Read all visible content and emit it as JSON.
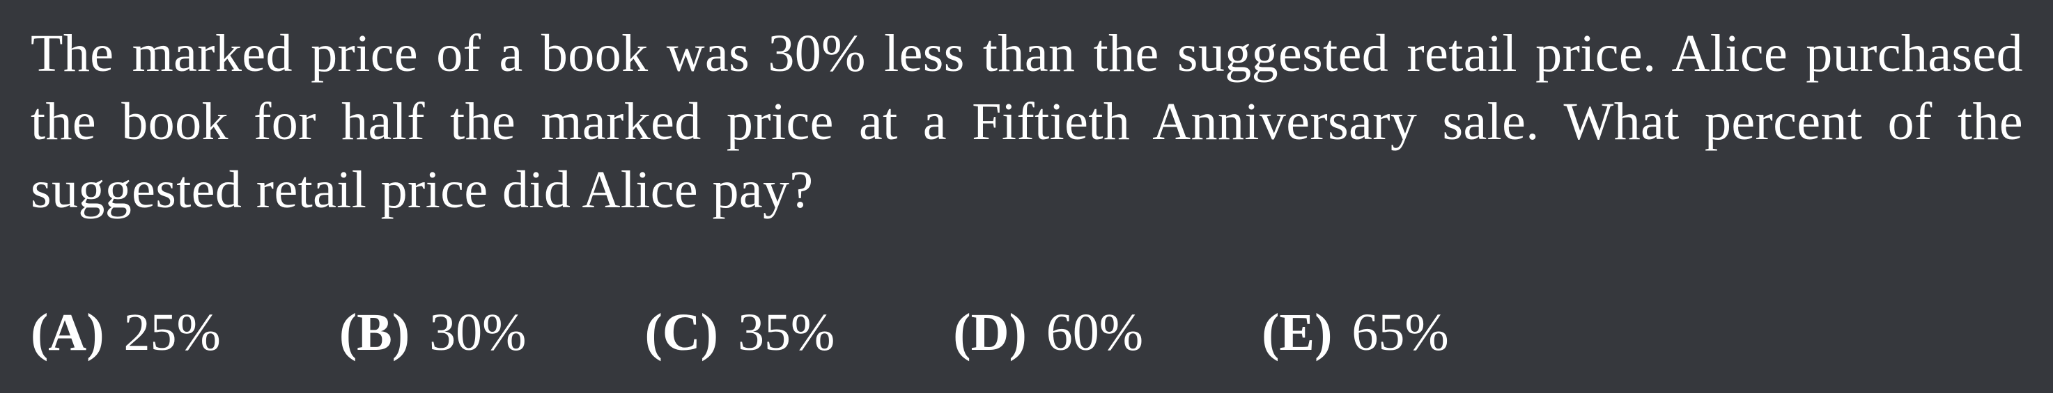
{
  "problem": {
    "text": "The marked price of a book was 30% less than the suggested retail price. Alice purchased the book for half the marked price at a Fiftieth Anniversary sale. What percent of the suggested retail price did Alice pay?"
  },
  "choices": [
    {
      "letter": "(A)",
      "value": "25%"
    },
    {
      "letter": "(B)",
      "value": "30%"
    },
    {
      "letter": "(C)",
      "value": "35%"
    },
    {
      "letter": "(D)",
      "value": "60%"
    },
    {
      "letter": "(E)",
      "value": "65%"
    }
  ],
  "colors": {
    "background": "#36383d",
    "text": "#ffffff"
  }
}
